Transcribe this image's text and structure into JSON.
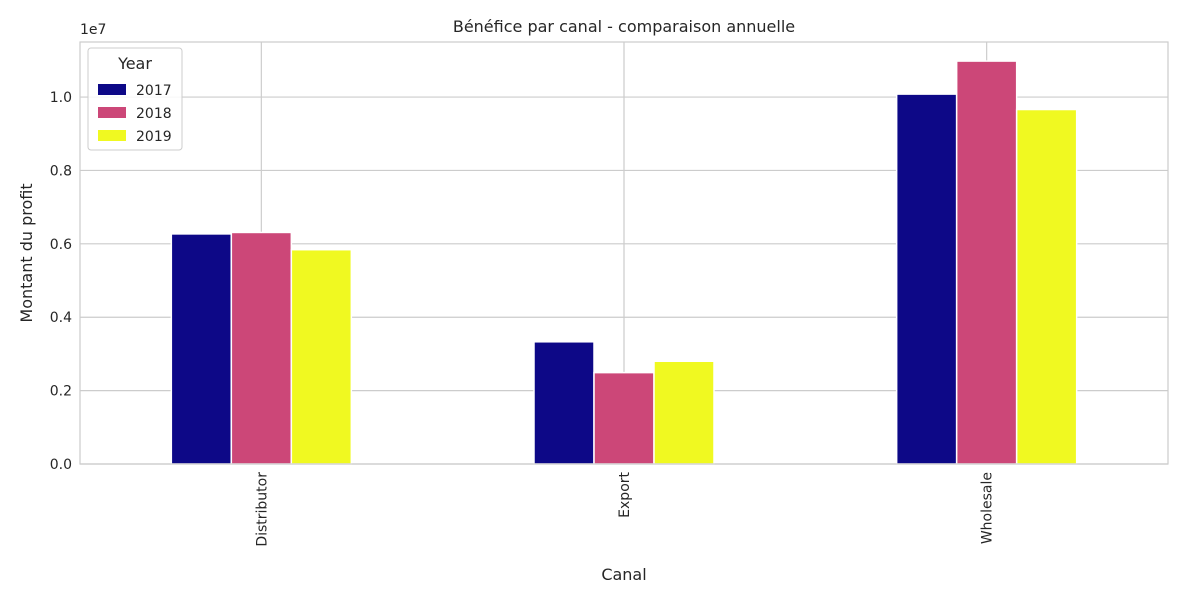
{
  "chart_data": {
    "type": "bar",
    "title": "Bénéfice par canal - comparaison annuelle",
    "xlabel": "Canal",
    "ylabel": "Montant du profit",
    "y_scale_label": "1e7",
    "categories": [
      "Distributor",
      "Export",
      "Wholesale"
    ],
    "series": [
      {
        "name": "2017",
        "color": "#0d0887",
        "values": [
          6270000,
          3330000,
          10080000
        ]
      },
      {
        "name": "2018",
        "color": "#cc4778",
        "values": [
          6310000,
          2490000,
          10980000
        ]
      },
      {
        "name": "2019",
        "color": "#f0f921",
        "values": [
          5840000,
          2800000,
          9660000
        ]
      }
    ],
    "ylim": [
      0,
      11500000
    ],
    "yticks": [
      0,
      2000000,
      4000000,
      6000000,
      8000000,
      10000000
    ],
    "ytick_labels": [
      "0.0",
      "0.2",
      "0.4",
      "0.6",
      "0.8",
      "1.0"
    ],
    "grid": true,
    "legend": {
      "title": "Year",
      "position": "top-left"
    }
  }
}
